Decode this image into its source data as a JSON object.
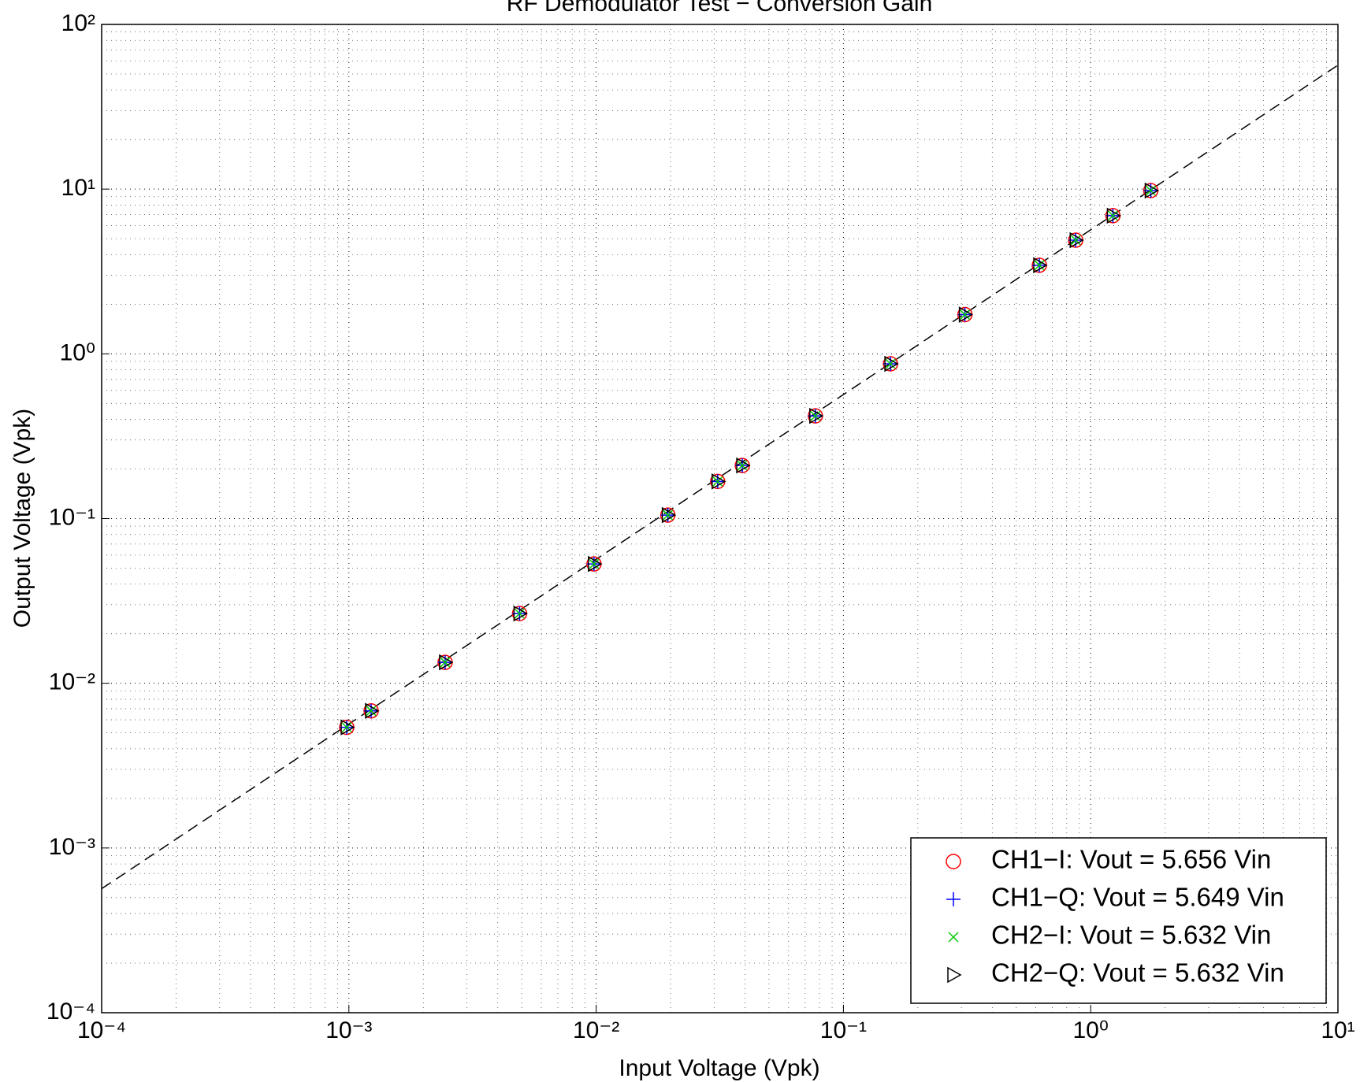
{
  "chart_data": {
    "type": "scatter",
    "title": "RF Demodulator Test − Conversion Gain",
    "xlabel": "Input Voltage (Vpk)",
    "ylabel": "Output Voltage (Vpk)",
    "log_x": true,
    "log_y": true,
    "grid": true,
    "minor_grid": true,
    "legend": "lower right",
    "xlim": [
      0.0001,
      10
    ],
    "ylim": [
      0.0001,
      100
    ],
    "xticks": [
      {
        "value": 0.0001,
        "label": "10⁻⁴"
      },
      {
        "value": 0.001,
        "label": "10⁻³"
      },
      {
        "value": 0.01,
        "label": "10⁻²"
      },
      {
        "value": 0.1,
        "label": "10⁻¹"
      },
      {
        "value": 1,
        "label": "10⁰"
      },
      {
        "value": 10,
        "label": "10¹"
      }
    ],
    "yticks": [
      {
        "value": 0.0001,
        "label": "10⁻⁴"
      },
      {
        "value": 0.001,
        "label": "10⁻³"
      },
      {
        "value": 0.01,
        "label": "10⁻²"
      },
      {
        "value": 0.1,
        "label": "10⁻¹"
      },
      {
        "value": 1,
        "label": "10⁰"
      },
      {
        "value": 10,
        "label": "10¹"
      },
      {
        "value": 100,
        "label": "10²"
      }
    ],
    "fit_line": {
      "x": [
        0.0001,
        10
      ],
      "y": [
        0.000566,
        56.6
      ],
      "color": "#000000"
    },
    "series": [
      {
        "name": "CH1−I: Vout = 5.656 Vin",
        "color": "#ff0000",
        "marker": "circle",
        "x": [
          0.00098,
          0.00123,
          0.00245,
          0.0049,
          0.0098,
          0.0195,
          0.031,
          0.039,
          0.077,
          0.155,
          0.31,
          0.62,
          0.87,
          1.23,
          1.75
        ],
        "values": [
          0.0054,
          0.0068,
          0.0134,
          0.0265,
          0.053,
          0.105,
          0.168,
          0.21,
          0.42,
          0.87,
          1.73,
          3.45,
          4.9,
          6.9,
          9.8
        ]
      },
      {
        "name": "CH1−Q: Vout = 5.649 Vin",
        "color": "#0000ff",
        "marker": "plus",
        "x": [
          0.00098,
          0.00123,
          0.00245,
          0.0049,
          0.0098,
          0.0195,
          0.031,
          0.039,
          0.077,
          0.155,
          0.31,
          0.62,
          0.87,
          1.23,
          1.75
        ],
        "values": [
          0.0054,
          0.0068,
          0.0134,
          0.0265,
          0.053,
          0.105,
          0.168,
          0.21,
          0.42,
          0.87,
          1.73,
          3.45,
          4.9,
          6.9,
          9.8
        ]
      },
      {
        "name": "CH2−I: Vout = 5.632 Vin",
        "color": "#00cc00",
        "marker": "x",
        "x": [
          0.00098,
          0.00123,
          0.00245,
          0.0049,
          0.0098,
          0.0195,
          0.031,
          0.039,
          0.077,
          0.155,
          0.31,
          0.62,
          0.87,
          1.23,
          1.75
        ],
        "values": [
          0.0054,
          0.0068,
          0.0134,
          0.0265,
          0.053,
          0.105,
          0.168,
          0.21,
          0.42,
          0.87,
          1.73,
          3.45,
          4.9,
          6.9,
          9.8
        ]
      },
      {
        "name": "CH2−Q: Vout = 5.632 Vin",
        "color": "#000000",
        "marker": "triangle-right",
        "x": [
          0.00098,
          0.00123,
          0.00245,
          0.0049,
          0.0098,
          0.0195,
          0.031,
          0.039,
          0.077,
          0.155,
          0.31,
          0.62,
          0.87,
          1.23,
          1.75
        ],
        "values": [
          0.0054,
          0.0068,
          0.0134,
          0.0265,
          0.053,
          0.105,
          0.168,
          0.21,
          0.42,
          0.87,
          1.73,
          3.45,
          4.9,
          6.9,
          9.8
        ]
      }
    ]
  }
}
